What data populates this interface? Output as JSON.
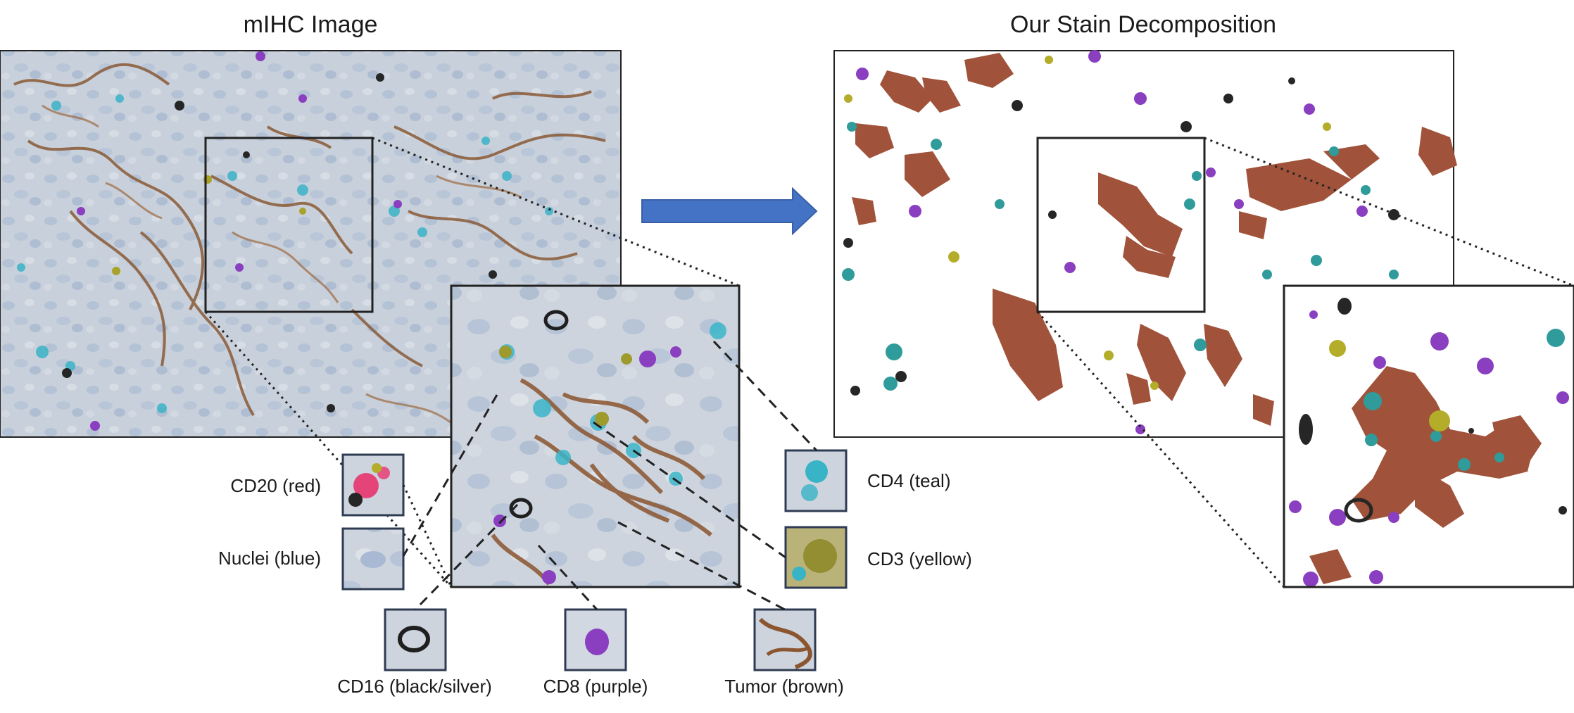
{
  "titles": {
    "left": "mIHC Image",
    "right": "Our Stain Decomposition"
  },
  "stains": [
    {
      "key": "cd20",
      "label": "CD20 (red)",
      "color": "#e8346e"
    },
    {
      "key": "nuclei",
      "label": "Nuclei (blue)",
      "color": "#9fb4d6"
    },
    {
      "key": "cd16",
      "label": "CD16 (black/silver)",
      "color": "#1f1f1f"
    },
    {
      "key": "cd8",
      "label": "CD8 (purple)",
      "color": "#8a3ec0"
    },
    {
      "key": "tumor",
      "label": "Tumor (brown)",
      "color": "#9a4f33"
    },
    {
      "key": "cd4",
      "label": "CD4 (teal)",
      "color": "#2f9b9b"
    },
    {
      "key": "cd3",
      "label": "CD3 (yellow)",
      "color": "#b3ad2a"
    }
  ],
  "colors": {
    "tissue_background": "#c9d1dc",
    "arrow": "#4472c4",
    "frame": "#222222"
  }
}
